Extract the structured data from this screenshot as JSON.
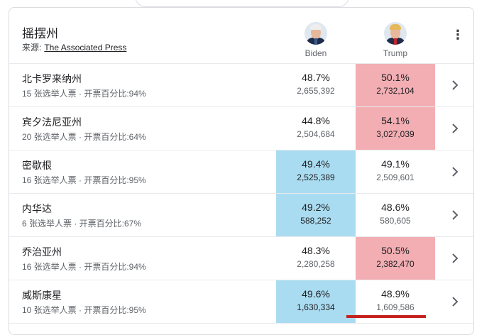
{
  "header": {
    "title": "摇摆州",
    "source_label": "来源:",
    "source_link": "The Associated Press",
    "candidates": [
      {
        "name": "Biden",
        "icon": "biden-avatar"
      },
      {
        "name": "Trump",
        "icon": "trump-avatar"
      }
    ],
    "menu_icon": "⋮"
  },
  "colors": {
    "biden_win": "#aadcf1",
    "trump_win": "#f2aeb3"
  },
  "rows": [
    {
      "state": "北卡罗来纳州",
      "meta": "15 张选举人票 · 开票百分比:94%",
      "biden_pct": "48.7%",
      "biden_votes": "2,655,392",
      "trump_pct": "50.1%",
      "trump_votes": "2,732,104",
      "winner": "t"
    },
    {
      "state": "宾夕法尼亚州",
      "meta": "20 张选举人票 · 开票百分比:64%",
      "biden_pct": "44.8%",
      "biden_votes": "2,504,684",
      "trump_pct": "54.1%",
      "trump_votes": "3,027,039",
      "winner": "t"
    },
    {
      "state": "密歇根",
      "meta": "16 张选举人票 · 开票百分比:95%",
      "biden_pct": "49.4%",
      "biden_votes": "2,525,389",
      "trump_pct": "49.1%",
      "trump_votes": "2,509,601",
      "winner": "b"
    },
    {
      "state": "内华达",
      "meta": "6 张选举人票 · 开票百分比:67%",
      "biden_pct": "49.2%",
      "biden_votes": "588,252",
      "trump_pct": "48.6%",
      "trump_votes": "580,605",
      "winner": "b"
    },
    {
      "state": "乔治亚州",
      "meta": "16 张选举人票 · 开票百分比:94%",
      "biden_pct": "48.3%",
      "biden_votes": "2,280,258",
      "trump_pct": "50.5%",
      "trump_votes": "2,382,470",
      "winner": "t"
    },
    {
      "state": "威斯康星",
      "meta": "10 张选举人票 · 开票百分比:95%",
      "biden_pct": "49.6%",
      "biden_votes": "1,630,334",
      "trump_pct": "48.9%",
      "trump_votes": "1,609,586",
      "winner": "b"
    }
  ]
}
